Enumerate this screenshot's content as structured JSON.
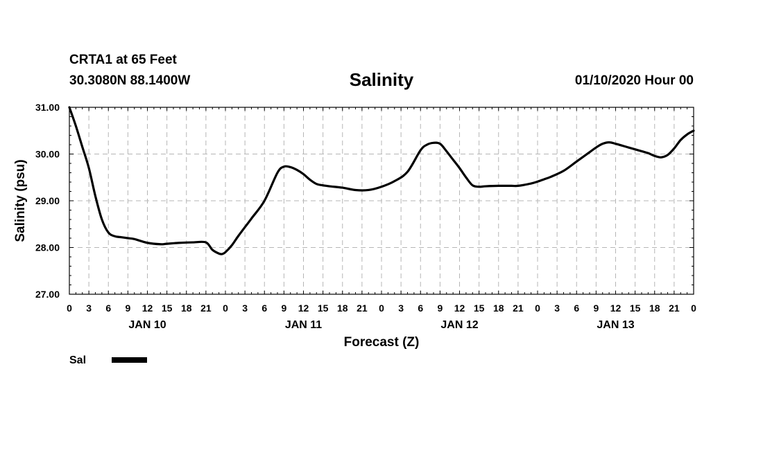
{
  "header": {
    "station": "CRTA1 at 65 Feet",
    "coords": "30.3080N 88.1400W",
    "title": "Salinity",
    "date": "01/10/2020 Hour 00"
  },
  "chart_data": {
    "type": "line",
    "title": "Salinity",
    "ylabel": "Salinity (psu)",
    "xlabel": "Forecast (Z)",
    "ylim": [
      27.0,
      31.0
    ],
    "xlim": [
      0,
      96
    ],
    "grid": true,
    "y_ticks": [
      "27.00",
      "28.00",
      "29.00",
      "30.00",
      "31.00"
    ],
    "y_tick_values": [
      27,
      28,
      29,
      30,
      31
    ],
    "x_ticks": [
      0,
      3,
      6,
      9,
      12,
      15,
      18,
      21,
      24,
      27,
      30,
      33,
      36,
      39,
      42,
      45,
      48,
      51,
      54,
      57,
      60,
      63,
      66,
      69,
      72,
      75,
      78,
      81,
      84,
      87,
      90,
      93,
      96
    ],
    "x_tick_labels": [
      "0",
      "3",
      "6",
      "9",
      "12",
      "15",
      "18",
      "21",
      "0",
      "3",
      "6",
      "9",
      "12",
      "15",
      "18",
      "21",
      "0",
      "3",
      "6",
      "9",
      "12",
      "15",
      "18",
      "21",
      "0",
      "3",
      "6",
      "9",
      "12",
      "15",
      "18",
      "21",
      "0"
    ],
    "day_labels": [
      {
        "text": "JAN 10",
        "hour": 12
      },
      {
        "text": "JAN 11",
        "hour": 36
      },
      {
        "text": "JAN 12",
        "hour": 60
      },
      {
        "text": "JAN 13",
        "hour": 84
      }
    ],
    "series": [
      {
        "name": "Sal",
        "color": "#000000",
        "x": [
          0,
          1,
          2,
          3,
          4,
          5,
          6,
          7,
          8,
          9,
          10,
          12,
          14,
          15,
          17,
          19,
          21,
          22,
          23,
          23.5,
          24,
          25,
          26,
          28,
          30,
          32,
          33,
          34,
          35,
          36,
          37,
          38,
          39,
          40,
          42,
          44,
          46,
          48,
          50,
          52,
          54,
          55,
          56,
          57,
          58,
          59,
          60,
          61,
          62,
          63,
          64,
          66,
          68,
          69,
          71,
          72,
          73,
          74,
          76,
          78,
          80,
          81,
          82,
          83,
          84,
          86,
          88,
          89,
          90,
          91,
          92,
          93,
          94,
          95,
          96
        ],
        "y": [
          31.0,
          30.6,
          30.15,
          29.7,
          29.1,
          28.6,
          28.32,
          28.24,
          28.22,
          28.2,
          28.18,
          28.1,
          28.07,
          28.08,
          28.1,
          28.11,
          28.11,
          27.95,
          27.87,
          27.86,
          27.9,
          28.05,
          28.25,
          28.62,
          29.0,
          29.6,
          29.73,
          29.72,
          29.66,
          29.57,
          29.45,
          29.36,
          29.33,
          29.31,
          29.28,
          29.23,
          29.23,
          29.3,
          29.42,
          29.62,
          30.08,
          30.2,
          30.24,
          30.22,
          30.06,
          29.88,
          29.7,
          29.5,
          29.33,
          29.3,
          29.31,
          29.32,
          29.32,
          29.32,
          29.37,
          29.41,
          29.46,
          29.51,
          29.64,
          29.84,
          30.04,
          30.14,
          30.22,
          30.25,
          30.22,
          30.14,
          30.06,
          30.02,
          29.96,
          29.93,
          29.98,
          30.12,
          30.3,
          30.42,
          30.5
        ]
      }
    ],
    "legend": {
      "label": "Sal",
      "placement": "bottom-left"
    }
  }
}
